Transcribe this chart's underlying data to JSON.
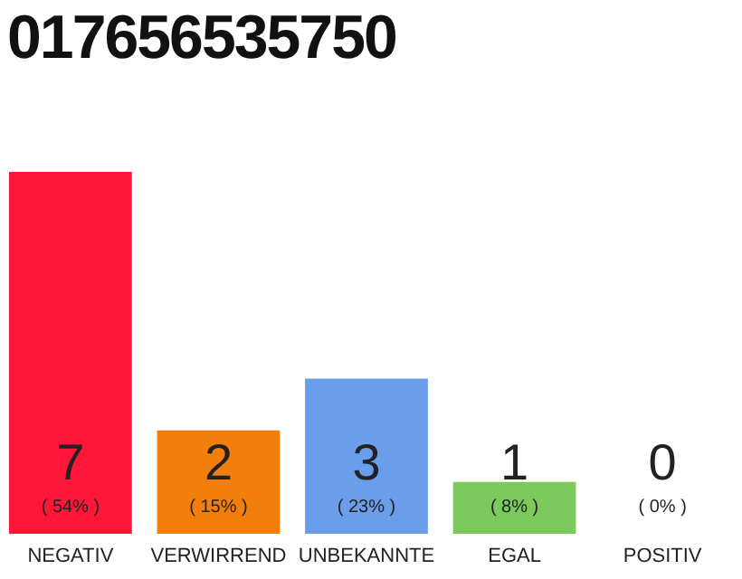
{
  "chart_data": {
    "type": "bar",
    "title": "017656535750",
    "categories": [
      "NEGATIV",
      "VERWIRREND",
      "UNBEKANNTE",
      "EGAL",
      "POSITIV"
    ],
    "values": [
      7,
      2,
      3,
      1,
      0
    ],
    "colors": [
      "#ff1638",
      "#f27f0c",
      "#6a9eea",
      "#7cc95c",
      "#b0b0b0"
    ],
    "data_labels": true,
    "annotations": [
      {
        "text": "( 54% )",
        "x": "NEGATIV",
        "y": 0
      },
      {
        "text": "( 15% )",
        "x": "VERWIRREND",
        "y": 0
      },
      {
        "text": "( 23% )",
        "x": "UNBEKANNTE",
        "y": 0
      },
      {
        "text": "( 8% )",
        "x": "EGAL",
        "y": 0
      },
      {
        "text": "( 0% )",
        "x": "POSITIV",
        "y": 0
      }
    ],
    "ylim": [
      0,
      7
    ],
    "tick_labels": "x"
  }
}
